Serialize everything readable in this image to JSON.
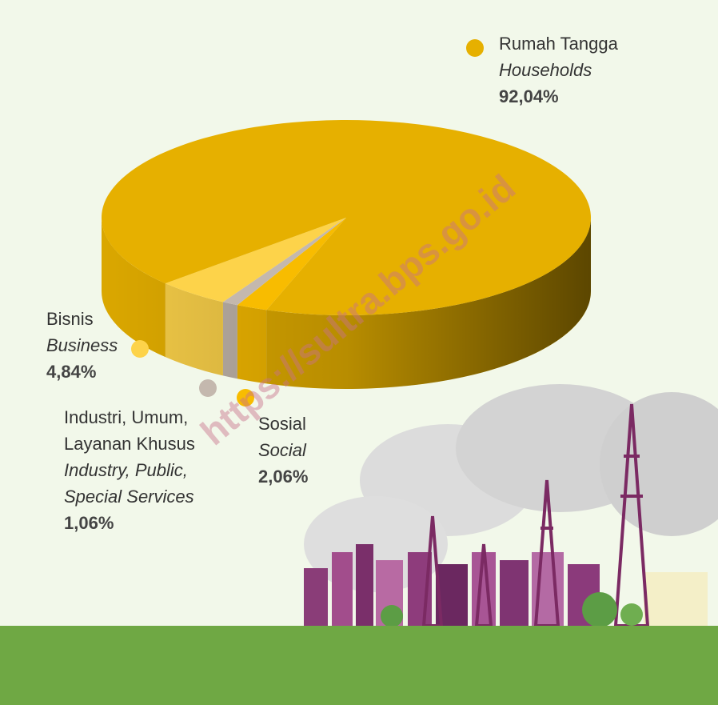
{
  "chart_data": {
    "type": "pie",
    "categories": [
      [
        "Rumah Tangga"
      ],
      [
        "Bisnis"
      ],
      [
        "Industri, Umum,",
        "Layanan Khusus"
      ],
      [
        "Sosial"
      ]
    ],
    "categories_en": [
      [
        "Households"
      ],
      [
        "Business"
      ],
      [
        "Industry, Public,",
        "Special Services"
      ],
      [
        "Social"
      ]
    ],
    "values": [
      92.04,
      4.84,
      1.06,
      2.06
    ],
    "value_labels": [
      "92,04%",
      "4,84%",
      "1,06%",
      "2,06%"
    ],
    "colors": [
      "#e6b000",
      "#fdd34a",
      "#c4b8ae",
      "#f8bc00"
    ],
    "watermark": "https://sultra.bps.go.id"
  }
}
